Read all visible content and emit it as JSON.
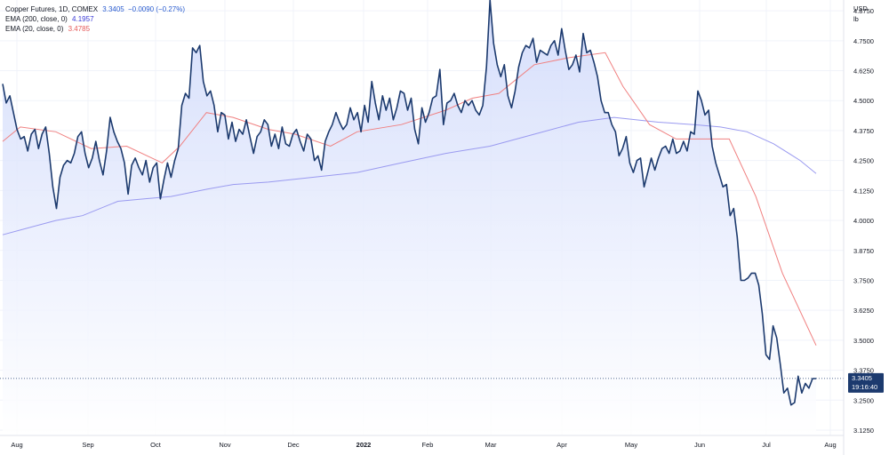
{
  "legend": {
    "main": "Copper Futures, 1D, COMEX",
    "last": "3.3405",
    "change": "−0.0090 (−0.27%)",
    "ema200_label": "EMA (200, close, 0)",
    "ema200_value": "4.1957",
    "ema20_label": "EMA (20, close, 0)",
    "ema20_value": "3.4785"
  },
  "axis": {
    "currency": "USD",
    "unit": "lb",
    "price_tag": "3.3405",
    "countdown": "19:16:40"
  },
  "colors": {
    "price_line": "#1c3a6e",
    "area_fill": "#dfe6fb",
    "ema200": "#9a9af0",
    "ema20": "#f08080",
    "tag_bg": "#1c3a6e"
  },
  "chart_data": {
    "type": "line",
    "title": "Copper Futures, 1D, COMEX",
    "ylabel": "USD lb",
    "ylim": [
      3.125,
      4.9125
    ],
    "y_ticks": [
      "3.1250",
      "3.2500",
      "3.3750",
      "3.5000",
      "3.6250",
      "3.7500",
      "3.8750",
      "4.0000",
      "4.1250",
      "4.2500",
      "4.3750",
      "4.5000",
      "4.6250",
      "4.7500",
      "4.8750"
    ],
    "x_ticks": [
      "Aug",
      "Sep",
      "Oct",
      "Nov",
      "Dec",
      "2022",
      "Feb",
      "Mar",
      "Apr",
      "May",
      "Jun",
      "Jul",
      "Aug"
    ],
    "last_value": 3.3405,
    "series": [
      {
        "name": "Copper Futures",
        "values": [
          4.57,
          4.49,
          4.52,
          4.45,
          4.38,
          4.34,
          4.35,
          4.29,
          4.36,
          4.38,
          4.3,
          4.36,
          4.39,
          4.28,
          4.14,
          4.05,
          4.18,
          4.23,
          4.25,
          4.24,
          4.28,
          4.35,
          4.37,
          4.28,
          4.22,
          4.26,
          4.33,
          4.25,
          4.19,
          4.29,
          4.43,
          4.37,
          4.33,
          4.3,
          4.24,
          4.11,
          4.23,
          4.26,
          4.22,
          4.19,
          4.25,
          4.16,
          4.22,
          4.24,
          4.09,
          4.17,
          4.24,
          4.18,
          4.25,
          4.3,
          4.48,
          4.53,
          4.51,
          4.72,
          4.7,
          4.73,
          4.58,
          4.52,
          4.54,
          4.48,
          4.37,
          4.45,
          4.44,
          4.34,
          4.41,
          4.33,
          4.38,
          4.36,
          4.42,
          4.35,
          4.28,
          4.35,
          4.37,
          4.42,
          4.4,
          4.31,
          4.36,
          4.3,
          4.39,
          4.32,
          4.31,
          4.36,
          4.38,
          4.33,
          4.29,
          4.36,
          4.34,
          4.25,
          4.27,
          4.21,
          4.33,
          4.37,
          4.4,
          4.45,
          4.41,
          4.38,
          4.4,
          4.47,
          4.42,
          4.45,
          4.37,
          4.48,
          4.41,
          4.58,
          4.49,
          4.42,
          4.52,
          4.46,
          4.51,
          4.42,
          4.47,
          4.54,
          4.53,
          4.46,
          4.51,
          4.38,
          4.32,
          4.47,
          4.41,
          4.45,
          4.51,
          4.52,
          4.63,
          4.4,
          4.49,
          4.5,
          4.53,
          4.48,
          4.45,
          4.5,
          4.48,
          4.5,
          4.46,
          4.44,
          4.48,
          4.64,
          4.92,
          4.74,
          4.65,
          4.6,
          4.65,
          4.52,
          4.47,
          4.54,
          4.64,
          4.7,
          4.73,
          4.72,
          4.76,
          4.66,
          4.71,
          4.7,
          4.69,
          4.73,
          4.75,
          4.69,
          4.8,
          4.71,
          4.63,
          4.65,
          4.69,
          4.62,
          4.78,
          4.7,
          4.71,
          4.66,
          4.6,
          4.5,
          4.45,
          4.45,
          4.4,
          4.37,
          4.27,
          4.3,
          4.35,
          4.24,
          4.2,
          4.25,
          4.26,
          4.14,
          4.2,
          4.26,
          4.21,
          4.26,
          4.3,
          4.31,
          4.28,
          4.34,
          4.28,
          4.29,
          4.33,
          4.29,
          4.37,
          4.36,
          4.54,
          4.5,
          4.44,
          4.46,
          4.31,
          4.24,
          4.19,
          4.14,
          4.15,
          4.02,
          4.05,
          3.93,
          3.75,
          3.75,
          3.76,
          3.78,
          3.78,
          3.73,
          3.61,
          3.44,
          3.42,
          3.56,
          3.51,
          3.4,
          3.28,
          3.3,
          3.23,
          3.24,
          3.35,
          3.28,
          3.32,
          3.3,
          3.34,
          3.34
        ]
      },
      {
        "name": "EMA (200, close, 0)",
        "x": [
          0,
          30,
          60,
          90,
          130,
          160,
          190,
          230,
          260,
          300,
          350,
          400,
          450,
          500,
          550,
          600,
          650,
          690,
          740,
          780,
          810,
          840,
          870,
          900,
          918
        ],
        "values": [
          3.94,
          3.97,
          4.0,
          4.02,
          4.08,
          4.09,
          4.1,
          4.13,
          4.15,
          4.16,
          4.18,
          4.2,
          4.24,
          4.28,
          4.31,
          4.36,
          4.41,
          4.43,
          4.41,
          4.4,
          4.39,
          4.37,
          4.32,
          4.25,
          4.196
        ]
      },
      {
        "name": "EMA (20, close, 0)",
        "x": [
          0,
          20,
          60,
          100,
          140,
          180,
          200,
          230,
          260,
          300,
          330,
          370,
          400,
          450,
          500,
          530,
          560,
          600,
          640,
          680,
          700,
          730,
          760,
          790,
          820,
          850,
          880,
          918
        ],
        "values": [
          4.33,
          4.39,
          4.37,
          4.3,
          4.31,
          4.24,
          4.31,
          4.45,
          4.43,
          4.38,
          4.36,
          4.31,
          4.37,
          4.4,
          4.46,
          4.51,
          4.53,
          4.65,
          4.68,
          4.7,
          4.56,
          4.4,
          4.34,
          4.34,
          4.34,
          4.1,
          3.78,
          3.4785
        ]
      }
    ]
  }
}
